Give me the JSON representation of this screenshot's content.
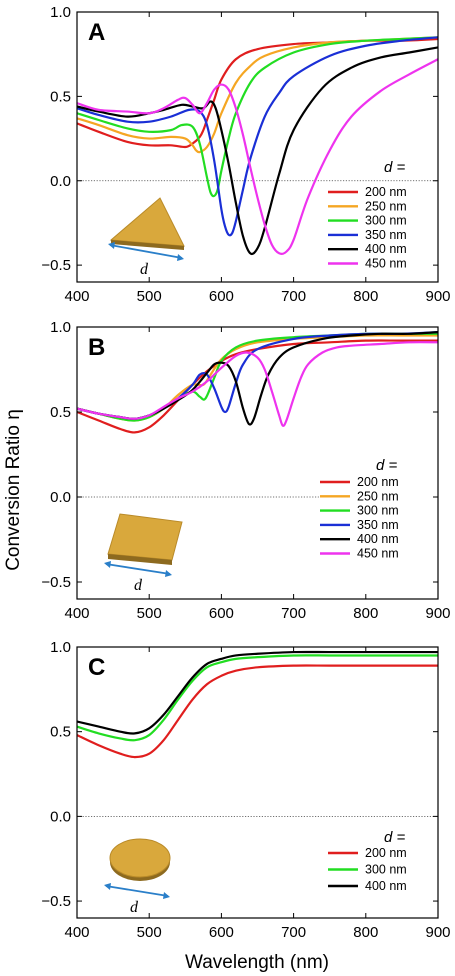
{
  "figure": {
    "xlabel": "Wavelength (nm)",
    "ylabel": "Conversion Ratio η",
    "colors": {
      "200 nm": "#e01e1e",
      "250 nm": "#f5a623",
      "300 nm": "#22dd22",
      "350 nm": "#1a2fd6",
      "400 nm": "#000000",
      "450 nm": "#ee33ee"
    },
    "inset_label": "d",
    "inset_color": "#d9a83c",
    "arrow_color": "#2a7fc9"
  },
  "chart_data": [
    {
      "type": "line",
      "panel": "A",
      "inset_shape": "triangle",
      "legend_title": "d =",
      "xlim": [
        400,
        900
      ],
      "ylim": [
        -0.6,
        1.0
      ],
      "xticks": [
        400,
        500,
        600,
        700,
        800,
        900
      ],
      "yticks": [
        1.0,
        0.5,
        0.0,
        -0.5
      ],
      "ytick_labels": [
        "1.0",
        "0.5",
        "0.0",
        "−0.5"
      ],
      "zero_line": true,
      "series": [
        {
          "name": "200 nm",
          "x": [
            400,
            430,
            470,
            500,
            530,
            550,
            560,
            570,
            575,
            580,
            590,
            600,
            620,
            650,
            700,
            750,
            800,
            850,
            900
          ],
          "y": [
            0.34,
            0.29,
            0.23,
            0.21,
            0.21,
            0.2,
            0.22,
            0.26,
            0.3,
            0.36,
            0.48,
            0.6,
            0.72,
            0.78,
            0.81,
            0.82,
            0.83,
            0.83,
            0.84
          ]
        },
        {
          "name": "250 nm",
          "x": [
            400,
            430,
            470,
            500,
            530,
            550,
            560,
            565,
            570,
            580,
            590,
            600,
            620,
            640,
            660,
            700,
            750,
            800,
            850,
            900
          ],
          "y": [
            0.37,
            0.33,
            0.27,
            0.25,
            0.26,
            0.25,
            0.21,
            0.18,
            0.17,
            0.2,
            0.28,
            0.4,
            0.58,
            0.68,
            0.74,
            0.79,
            0.82,
            0.83,
            0.84,
            0.85
          ]
        },
        {
          "name": "300 nm",
          "x": [
            400,
            430,
            470,
            500,
            530,
            545,
            560,
            570,
            580,
            585,
            590,
            595,
            600,
            610,
            620,
            640,
            660,
            700,
            750,
            800,
            850,
            900
          ],
          "y": [
            0.4,
            0.36,
            0.31,
            0.29,
            0.3,
            0.33,
            0.32,
            0.22,
            0.02,
            -0.07,
            -0.09,
            -0.05,
            0.06,
            0.25,
            0.4,
            0.58,
            0.67,
            0.76,
            0.81,
            0.83,
            0.84,
            0.85
          ]
        },
        {
          "name": "350 nm",
          "x": [
            400,
            430,
            470,
            500,
            530,
            555,
            570,
            580,
            590,
            600,
            605,
            610,
            615,
            620,
            630,
            640,
            660,
            680,
            700,
            750,
            800,
            850,
            900
          ],
          "y": [
            0.43,
            0.39,
            0.35,
            0.35,
            0.38,
            0.42,
            0.41,
            0.33,
            0.12,
            -0.17,
            -0.27,
            -0.32,
            -0.31,
            -0.24,
            -0.05,
            0.13,
            0.38,
            0.52,
            0.62,
            0.74,
            0.8,
            0.83,
            0.85
          ]
        },
        {
          "name": "400 nm",
          "x": [
            400,
            430,
            470,
            500,
            520,
            545,
            560,
            575,
            585,
            592,
            600,
            610,
            620,
            630,
            640,
            650,
            660,
            680,
            700,
            740,
            780,
            820,
            860,
            900
          ],
          "y": [
            0.44,
            0.41,
            0.38,
            0.4,
            0.42,
            0.45,
            0.44,
            0.43,
            0.47,
            0.43,
            0.3,
            0.1,
            -0.13,
            -0.33,
            -0.43,
            -0.4,
            -0.28,
            0.04,
            0.3,
            0.55,
            0.67,
            0.73,
            0.76,
            0.79
          ]
        },
        {
          "name": "450 nm",
          "x": [
            400,
            430,
            470,
            500,
            520,
            540,
            550,
            560,
            570,
            580,
            590,
            600,
            610,
            620,
            630,
            640,
            650,
            660,
            670,
            680,
            690,
            700,
            720,
            750,
            780,
            820,
            860,
            900
          ],
          "y": [
            0.46,
            0.42,
            0.41,
            0.4,
            0.43,
            0.48,
            0.49,
            0.45,
            0.4,
            0.46,
            0.54,
            0.57,
            0.54,
            0.43,
            0.27,
            0.08,
            -0.1,
            -0.26,
            -0.38,
            -0.43,
            -0.42,
            -0.35,
            -0.1,
            0.18,
            0.38,
            0.53,
            0.63,
            0.72
          ]
        }
      ]
    },
    {
      "type": "line",
      "panel": "B",
      "inset_shape": "square",
      "legend_title": "d =",
      "xlim": [
        400,
        900
      ],
      "ylim": [
        -0.6,
        1.0
      ],
      "xticks": [
        400,
        500,
        600,
        700,
        800,
        900
      ],
      "yticks": [
        1.0,
        0.5,
        0.0,
        -0.5
      ],
      "ytick_labels": [
        "1.0",
        "0.5",
        "0.0",
        "−0.5"
      ],
      "zero_line": true,
      "zero_line_end": 735,
      "series": [
        {
          "name": "200 nm",
          "x": [
            400,
            430,
            460,
            480,
            500,
            520,
            540,
            560,
            580,
            600,
            620,
            650,
            700,
            750,
            800,
            850,
            900
          ],
          "y": [
            0.5,
            0.45,
            0.4,
            0.38,
            0.41,
            0.48,
            0.57,
            0.66,
            0.74,
            0.8,
            0.84,
            0.87,
            0.9,
            0.91,
            0.92,
            0.92,
            0.92
          ]
        },
        {
          "name": "250 nm",
          "x": [
            400,
            430,
            460,
            480,
            500,
            520,
            540,
            560,
            575,
            585,
            600,
            620,
            650,
            700,
            750,
            800,
            850,
            900
          ],
          "y": [
            0.52,
            0.49,
            0.46,
            0.45,
            0.47,
            0.52,
            0.6,
            0.66,
            0.66,
            0.72,
            0.81,
            0.87,
            0.91,
            0.93,
            0.94,
            0.95,
            0.95,
            0.95
          ]
        },
        {
          "name": "300 nm",
          "x": [
            400,
            430,
            460,
            480,
            500,
            520,
            540,
            560,
            570,
            578,
            590,
            600,
            620,
            650,
            700,
            750,
            800,
            850,
            900
          ],
          "y": [
            0.52,
            0.49,
            0.46,
            0.45,
            0.47,
            0.52,
            0.58,
            0.62,
            0.59,
            0.58,
            0.7,
            0.8,
            0.88,
            0.92,
            0.94,
            0.95,
            0.96,
            0.96,
            0.96
          ]
        },
        {
          "name": "350 nm",
          "x": [
            400,
            430,
            460,
            480,
            500,
            520,
            540,
            560,
            570,
            580,
            590,
            600,
            605,
            610,
            620,
            630,
            650,
            700,
            750,
            800,
            850,
            900
          ],
          "y": [
            0.52,
            0.49,
            0.47,
            0.46,
            0.48,
            0.52,
            0.58,
            0.66,
            0.72,
            0.72,
            0.64,
            0.53,
            0.5,
            0.53,
            0.67,
            0.78,
            0.87,
            0.93,
            0.95,
            0.96,
            0.96,
            0.97
          ]
        },
        {
          "name": "400 nm",
          "x": [
            400,
            430,
            460,
            480,
            500,
            520,
            540,
            560,
            580,
            590,
            600,
            610,
            620,
            630,
            638,
            645,
            655,
            665,
            680,
            700,
            740,
            780,
            820,
            860,
            900
          ],
          "y": [
            0.52,
            0.49,
            0.47,
            0.46,
            0.48,
            0.52,
            0.57,
            0.63,
            0.73,
            0.78,
            0.79,
            0.77,
            0.68,
            0.52,
            0.43,
            0.46,
            0.6,
            0.72,
            0.82,
            0.88,
            0.93,
            0.95,
            0.96,
            0.96,
            0.97
          ]
        },
        {
          "name": "450 nm",
          "x": [
            400,
            430,
            460,
            480,
            500,
            520,
            540,
            560,
            580,
            600,
            620,
            635,
            650,
            660,
            670,
            680,
            685,
            690,
            700,
            710,
            720,
            740,
            760,
            780,
            820,
            860,
            900
          ],
          "y": [
            0.52,
            0.49,
            0.47,
            0.46,
            0.48,
            0.53,
            0.58,
            0.62,
            0.68,
            0.76,
            0.83,
            0.85,
            0.82,
            0.75,
            0.62,
            0.48,
            0.42,
            0.45,
            0.58,
            0.7,
            0.78,
            0.85,
            0.88,
            0.89,
            0.9,
            0.91,
            0.91
          ]
        }
      ]
    },
    {
      "type": "line",
      "panel": "C",
      "inset_shape": "disk",
      "legend_title": "d =",
      "xlim": [
        400,
        900
      ],
      "ylim": [
        -0.6,
        1.0
      ],
      "xticks": [
        400,
        500,
        600,
        700,
        800,
        900
      ],
      "yticks": [
        1.0,
        0.5,
        0.0,
        -0.5
      ],
      "ytick_labels": [
        "1.0",
        "0.5",
        "0.0",
        "−0.5"
      ],
      "zero_line": true,
      "series": [
        {
          "name": "200 nm",
          "x": [
            400,
            430,
            460,
            480,
            500,
            520,
            540,
            560,
            580,
            600,
            620,
            650,
            700,
            750,
            800,
            850,
            900
          ],
          "y": [
            0.48,
            0.42,
            0.37,
            0.35,
            0.37,
            0.45,
            0.57,
            0.69,
            0.78,
            0.83,
            0.86,
            0.88,
            0.89,
            0.89,
            0.89,
            0.89,
            0.89
          ]
        },
        {
          "name": "300 nm",
          "x": [
            400,
            430,
            460,
            480,
            500,
            520,
            540,
            560,
            580,
            600,
            620,
            650,
            700,
            750,
            800,
            850,
            900
          ],
          "y": [
            0.53,
            0.49,
            0.46,
            0.45,
            0.48,
            0.57,
            0.69,
            0.8,
            0.88,
            0.91,
            0.93,
            0.94,
            0.95,
            0.95,
            0.95,
            0.95,
            0.95
          ]
        },
        {
          "name": "400 nm",
          "x": [
            400,
            430,
            460,
            480,
            500,
            520,
            540,
            560,
            580,
            600,
            620,
            650,
            700,
            750,
            800,
            850,
            900
          ],
          "y": [
            0.56,
            0.53,
            0.5,
            0.49,
            0.52,
            0.6,
            0.71,
            0.82,
            0.9,
            0.93,
            0.95,
            0.96,
            0.97,
            0.97,
            0.97,
            0.97,
            0.97
          ]
        }
      ]
    }
  ]
}
